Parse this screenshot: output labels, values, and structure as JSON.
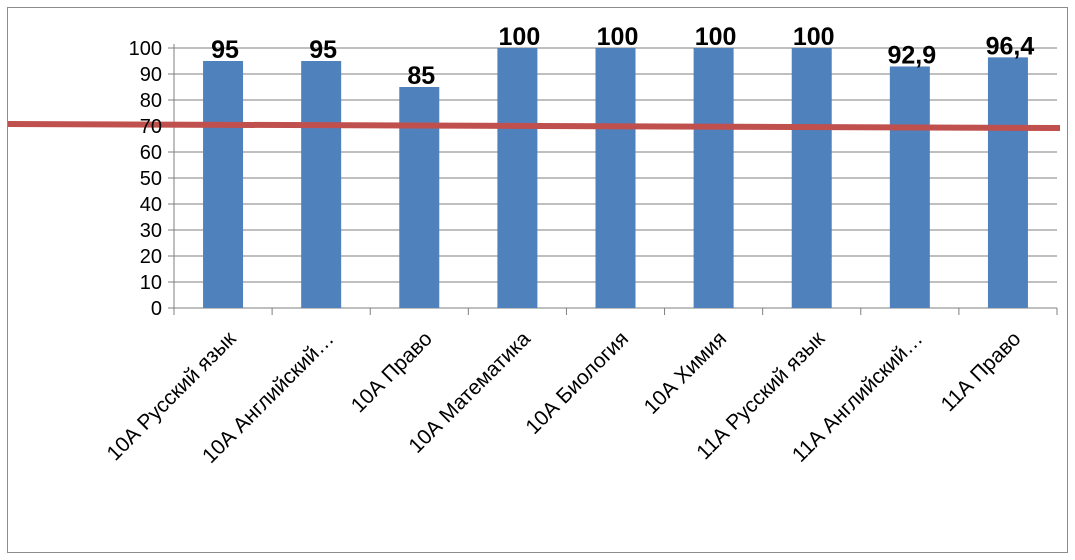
{
  "chart_data": {
    "type": "bar",
    "categories": [
      "10А Русский язык",
      "10А Английский…",
      "10А Право",
      "10А Математика",
      "10А Биология",
      "10А Химия",
      "11А Русский язык",
      "11А Английский…",
      "11А Право"
    ],
    "values": [
      95,
      95,
      85,
      100,
      100,
      100,
      100,
      92.9,
      96.4
    ],
    "data_labels": [
      "95",
      "95",
      "85",
      "100",
      "100",
      "100",
      "100",
      "92,9",
      "96,4"
    ],
    "y_ticks": [
      "0",
      "10",
      "20",
      "30",
      "40",
      "50",
      "60",
      "70",
      "80",
      "90",
      "100"
    ],
    "ylim": [
      0,
      100
    ],
    "reference_line": {
      "value": 70,
      "color": "#c0504d"
    },
    "bar_color": "#4f81bd",
    "grid": true,
    "title": "",
    "xlabel": "",
    "ylabel": ""
  }
}
